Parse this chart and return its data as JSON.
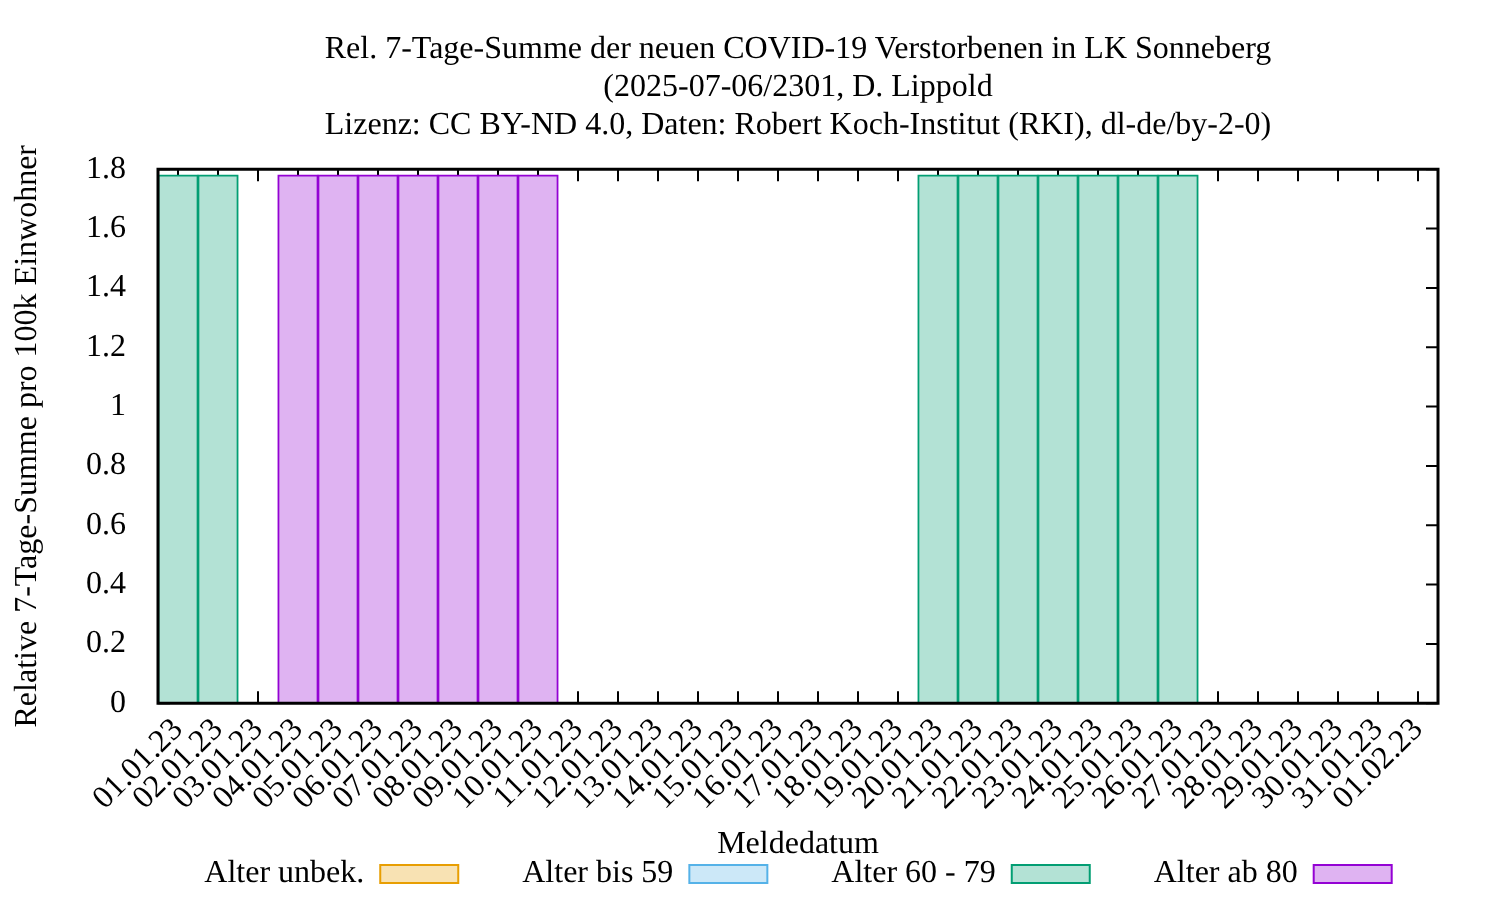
{
  "chart_data": {
    "type": "bar",
    "title": "Rel. 7-Tage-Summe der neuen COVID-19 Verstorbenen in LK Sonneberg",
    "subtitle": "(2025-07-06/2301, D. Lippold\nLizenz: CC BY-ND 4.0, Daten: Robert Koch-Institut (RKI), dl-de/by-2-0)",
    "xlabel": "Meldedatum",
    "ylabel": "Relative 7-Tage-Summe pro 100k Einwohner",
    "categories": [
      "01.01.23",
      "02.01.23",
      "03.01.23",
      "04.01.23",
      "05.01.23",
      "06.01.23",
      "07.01.23",
      "08.01.23",
      "09.01.23",
      "10.01.23",
      "11.01.23",
      "12.01.23",
      "13.01.23",
      "14.01.23",
      "15.01.23",
      "16.01.23",
      "17.01.23",
      "18.01.23",
      "19.01.23",
      "20.01.23",
      "21.01.23",
      "22.01.23",
      "23.01.23",
      "24.01.23",
      "25.01.23",
      "26.01.23",
      "27.01.23",
      "28.01.23",
      "29.01.23",
      "30.01.23",
      "31.01.23",
      "01.02.23"
    ],
    "series": [
      {
        "name": "Alter unbek.",
        "color": "#f8e2b3",
        "values": [
          0,
          0,
          0,
          0,
          0,
          0,
          0,
          0,
          0,
          0,
          0,
          0,
          0,
          0,
          0,
          0,
          0,
          0,
          0,
          0,
          0,
          0,
          0,
          0,
          0,
          0,
          0,
          0,
          0,
          0,
          0,
          0
        ]
      },
      {
        "name": "Alter bis 59",
        "color": "#cce8f8",
        "values": [
          0,
          0,
          0,
          0,
          0,
          0,
          0,
          0,
          0,
          0,
          0,
          0,
          0,
          0,
          0,
          0,
          0,
          0,
          0,
          0,
          0,
          0,
          0,
          0,
          0,
          0,
          0,
          0,
          0,
          0,
          0,
          0
        ]
      },
      {
        "name": "Alter 60 - 79",
        "color": "#b3e2d5",
        "values": [
          1.78,
          1.78,
          0,
          0,
          0,
          0,
          0,
          0,
          0,
          0,
          0,
          0,
          0,
          0,
          0,
          0,
          0,
          0,
          0,
          1.78,
          1.78,
          1.78,
          1.78,
          1.78,
          1.78,
          1.78,
          0,
          0,
          0,
          0,
          0,
          0
        ]
      },
      {
        "name": "Alter ab 80",
        "color": "#dfb3f2",
        "values": [
          0,
          0,
          0,
          1.78,
          1.78,
          1.78,
          1.78,
          1.78,
          1.78,
          1.78,
          0,
          0,
          0,
          0,
          0,
          0,
          0,
          0,
          0,
          0,
          0,
          0,
          0,
          0,
          0,
          0,
          0,
          0,
          0,
          0,
          0,
          0
        ]
      }
    ],
    "stacked": true,
    "ylim": [
      0,
      1.8
    ],
    "yticks": [
      0,
      0.2,
      0.4,
      0.6,
      0.8,
      1,
      1.2,
      1.4,
      1.6,
      1.8
    ],
    "grid": false,
    "legend": "bottom"
  }
}
